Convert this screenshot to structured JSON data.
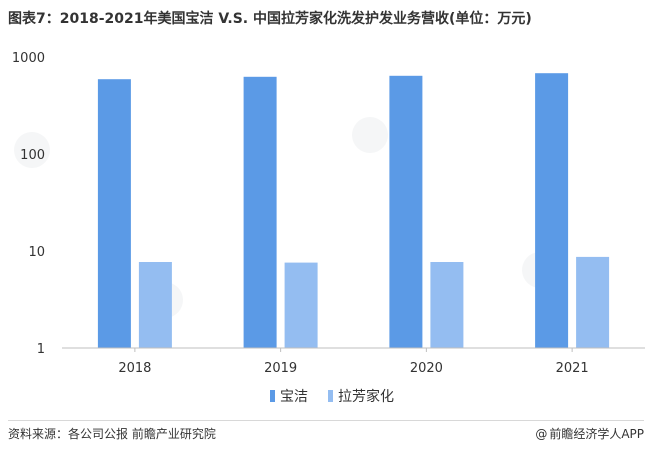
{
  "title": "图表7：2018-2021年美国宝洁 V.S. 中国拉芳家化洗发护发业务营收(单位：万元)",
  "source_text": "资料来源：各公司公报 前瞻产业研究院",
  "brand_text": "前瞻经济学人APP",
  "brand_symbol": "@",
  "colors": {
    "pg": "#5b9ae6",
    "lafang": "#94bdf1",
    "axis": "#bfbfbf",
    "text": "#333333"
  },
  "chart_data": {
    "type": "bar",
    "title": "图表7：2018-2021年美国宝洁 V.S. 中国拉芳家化洗发护发业务营收(单位：万元)",
    "xlabel": "",
    "ylabel": "",
    "yscale": "log",
    "ylim": [
      1,
      1000
    ],
    "yticks": [
      "1",
      "10",
      "100",
      "1000"
    ],
    "categories": [
      "2018",
      "2019",
      "2020",
      "2021"
    ],
    "series": [
      {
        "name": "宝洁",
        "color": "#5b9ae6",
        "values": [
          590,
          625,
          640,
          680
        ]
      },
      {
        "name": "拉芳家化",
        "color": "#94bdf1",
        "values": [
          7.7,
          7.6,
          7.7,
          8.7
        ]
      }
    ],
    "legend": "bottom-center",
    "grid": false
  }
}
